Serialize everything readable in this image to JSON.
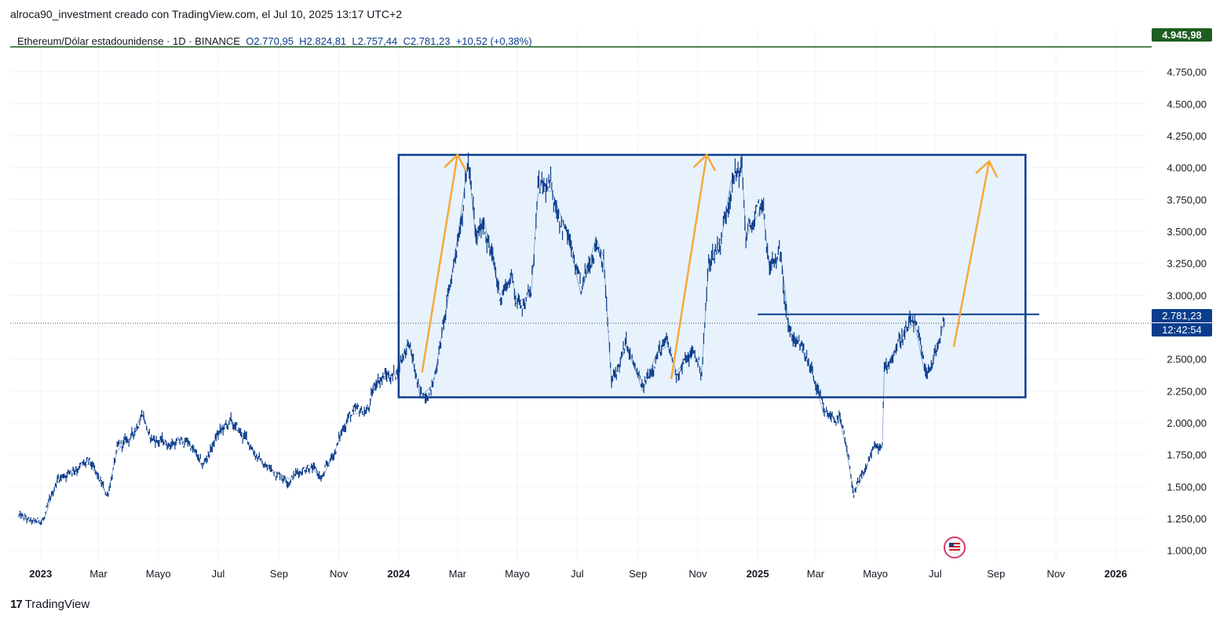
{
  "header": {
    "caption": "alroca90_investment creado con TradingView.com, el Jul 10, 2025 13:17 UTC+2"
  },
  "legend": {
    "symbol": "Ethereum/Dólar estadounidense · 1D · BINANCE",
    "open": "O2.770,95",
    "high": "H2.824,81",
    "low": "L2.757,44",
    "close": "C2.781,23",
    "change": "+10,52 (+0,38%)"
  },
  "price_tags": {
    "top_value": "4.945,98",
    "last_value": "2.781,23",
    "countdown": "12:42:54"
  },
  "footer": {
    "brand": "TradingView",
    "logo_mark": "17"
  },
  "colors": {
    "candle": "#0c3d8c",
    "box_fill": "#e3f0fd",
    "box_border": "#0c3d8c",
    "arrow": "#f7a83a",
    "top_line": "#1e5e20",
    "grid": "#f0f3fa"
  },
  "chart_data": {
    "type": "line",
    "title": "Ethereum/Dólar estadounidense · 1D · BINANCE",
    "x_range": [
      "2022-12-01",
      "2026-02-01"
    ],
    "ylim": [
      900,
      5080
    ],
    "y_ticks": [
      1000,
      1250,
      1500,
      1750,
      2000,
      2250,
      2500,
      2750,
      3000,
      3250,
      3500,
      3750,
      4000,
      4250,
      4500,
      4750
    ],
    "y_tick_labels": [
      "1.000,00",
      "1.250,00",
      "1.500,00",
      "1.750,00",
      "2.000,00",
      "2.250,00",
      "2.500,00",
      "2.750,00",
      "3.000,00",
      "3.250,00",
      "3.500,00",
      "3.750,00",
      "4.000,00",
      "4.250,00",
      "4.500,00",
      "4.750,00"
    ],
    "x_ticks": [
      {
        "date": "2023-01-01",
        "label": "2023",
        "bold": true
      },
      {
        "date": "2023-03-01",
        "label": "Mar"
      },
      {
        "date": "2023-05-01",
        "label": "Mayo"
      },
      {
        "date": "2023-07-01",
        "label": "Jul"
      },
      {
        "date": "2023-09-01",
        "label": "Sep"
      },
      {
        "date": "2023-11-01",
        "label": "Nov"
      },
      {
        "date": "2024-01-01",
        "label": "2024",
        "bold": true
      },
      {
        "date": "2024-03-01",
        "label": "Mar"
      },
      {
        "date": "2024-05-01",
        "label": "Mayo"
      },
      {
        "date": "2024-07-01",
        "label": "Jul"
      },
      {
        "date": "2024-09-01",
        "label": "Sep"
      },
      {
        "date": "2024-11-01",
        "label": "Nov"
      },
      {
        "date": "2025-01-01",
        "label": "2025",
        "bold": true
      },
      {
        "date": "2025-03-01",
        "label": "Mar"
      },
      {
        "date": "2025-05-01",
        "label": "Mayo"
      },
      {
        "date": "2025-07-01",
        "label": "Jul"
      },
      {
        "date": "2025-09-01",
        "label": "Sep"
      },
      {
        "date": "2025-11-01",
        "label": "Nov"
      },
      {
        "date": "2026-01-01",
        "label": "2026",
        "bold": true
      }
    ],
    "series": [
      {
        "name": "ETH/USD close",
        "points": [
          [
            "2022-12-10",
            1270
          ],
          [
            "2022-12-25",
            1210
          ],
          [
            "2023-01-05",
            1250
          ],
          [
            "2023-01-18",
            1560
          ],
          [
            "2023-02-05",
            1650
          ],
          [
            "2023-02-20",
            1680
          ],
          [
            "2023-03-10",
            1430
          ],
          [
            "2023-03-20",
            1780
          ],
          [
            "2023-04-05",
            1900
          ],
          [
            "2023-04-15",
            2100
          ],
          [
            "2023-04-22",
            1880
          ],
          [
            "2023-05-10",
            1840
          ],
          [
            "2023-06-01",
            1850
          ],
          [
            "2023-06-15",
            1650
          ],
          [
            "2023-06-30",
            1900
          ],
          [
            "2023-07-13",
            2000
          ],
          [
            "2023-08-01",
            1850
          ],
          [
            "2023-08-17",
            1660
          ],
          [
            "2023-09-11",
            1560
          ],
          [
            "2023-10-01",
            1670
          ],
          [
            "2023-10-15",
            1560
          ],
          [
            "2023-10-28",
            1780
          ],
          [
            "2023-11-10",
            2050
          ],
          [
            "2023-12-01",
            2100
          ],
          [
            "2023-12-10",
            2350
          ],
          [
            "2023-12-28",
            2380
          ],
          [
            "2024-01-11",
            2640
          ],
          [
            "2024-01-23",
            2200
          ],
          [
            "2024-02-05",
            2300
          ],
          [
            "2024-02-20",
            2950
          ],
          [
            "2024-03-01",
            3450
          ],
          [
            "2024-03-12",
            4050
          ],
          [
            "2024-03-20",
            3400
          ],
          [
            "2024-03-28",
            3600
          ],
          [
            "2024-04-13",
            3000
          ],
          [
            "2024-04-25",
            3150
          ],
          [
            "2024-05-01",
            2950
          ],
          [
            "2024-05-15",
            3000
          ],
          [
            "2024-05-22",
            3800
          ],
          [
            "2024-06-05",
            3820
          ],
          [
            "2024-06-20",
            3500
          ],
          [
            "2024-07-05",
            3000
          ],
          [
            "2024-07-20",
            3450
          ],
          [
            "2024-07-28",
            3300
          ],
          [
            "2024-08-05",
            2300
          ],
          [
            "2024-08-20",
            2600
          ],
          [
            "2024-09-06",
            2250
          ],
          [
            "2024-09-20",
            2550
          ],
          [
            "2024-10-01",
            2600
          ],
          [
            "2024-10-10",
            2400
          ],
          [
            "2024-10-28",
            2550
          ],
          [
            "2024-11-05",
            2400
          ],
          [
            "2024-11-12",
            3250
          ],
          [
            "2024-11-25",
            3450
          ],
          [
            "2024-12-05",
            3900
          ],
          [
            "2024-12-16",
            4000
          ],
          [
            "2024-12-20",
            3450
          ],
          [
            "2025-01-06",
            3700
          ],
          [
            "2025-01-13",
            3200
          ],
          [
            "2025-01-25",
            3300
          ],
          [
            "2025-02-03",
            2700
          ],
          [
            "2025-02-10",
            2650
          ],
          [
            "2025-02-25",
            2400
          ],
          [
            "2025-03-10",
            2050
          ],
          [
            "2025-03-25",
            2050
          ],
          [
            "2025-04-01",
            1800
          ],
          [
            "2025-04-09",
            1450
          ],
          [
            "2025-04-20",
            1600
          ],
          [
            "2025-04-28",
            1800
          ],
          [
            "2025-05-08",
            1800
          ],
          [
            "2025-05-10",
            2400
          ],
          [
            "2025-05-25",
            2650
          ],
          [
            "2025-06-10",
            2780
          ],
          [
            "2025-06-20",
            2400
          ],
          [
            "2025-06-28",
            2450
          ],
          [
            "2025-07-03",
            2580
          ],
          [
            "2025-07-10",
            2781
          ]
        ]
      }
    ],
    "annotations": {
      "range_box": {
        "from": "2024-01-01",
        "to": "2025-10-01",
        "low": 2200,
        "high": 4100
      },
      "resistance_line": {
        "from": "2025-01-01",
        "to": "2025-10-15",
        "value": 2850
      },
      "top_price_line": {
        "value": 4945.98
      },
      "last_price_line": {
        "value": 2781.23
      },
      "arrows": [
        {
          "from_date": "2024-01-25",
          "from_value": 2400,
          "to_date": "2024-03-01",
          "to_value": 4100
        },
        {
          "from_date": "2024-10-05",
          "from_value": 2350,
          "to_date": "2024-11-10",
          "to_value": 4100
        },
        {
          "from_date": "2025-07-20",
          "from_value": 2600,
          "to_date": "2025-08-25",
          "to_value": 4050
        }
      ]
    }
  }
}
